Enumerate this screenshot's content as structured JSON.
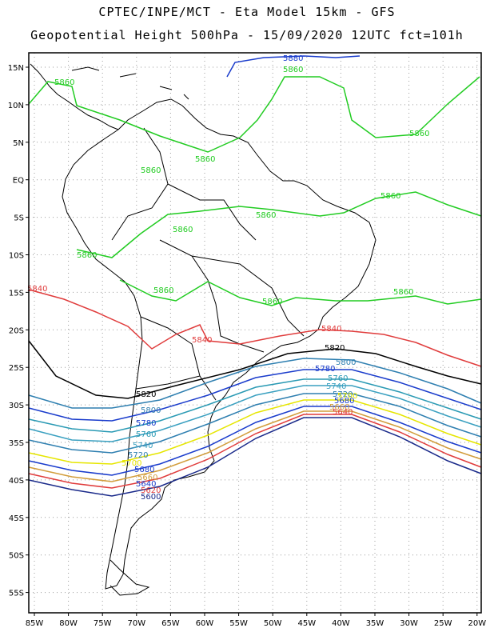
{
  "header": {
    "line1": "CPTEC/INPE/MCT  -  Eta Model 15km  -  GFS",
    "line2": "Geopotential Height 500hPa  -  15/09/2020 12UTC fct=101h"
  },
  "axes": {
    "lat_labels": [
      "15N",
      "10N",
      "5N",
      "EQ",
      "5S",
      "10S",
      "15S",
      "20S",
      "25S",
      "30S",
      "35S",
      "40S",
      "45S",
      "50S",
      "55S"
    ],
    "lon_labels": [
      "85W",
      "80W",
      "75W",
      "70W",
      "65W",
      "60W",
      "55W",
      "50W",
      "45W",
      "40W",
      "35W",
      "30W",
      "25W",
      "20W"
    ]
  },
  "colors": {
    "c5880": "#1a3ccc",
    "c5860": "#22cc22",
    "c5840": "#e03c3c",
    "c5820": "#000000",
    "c5800": "#2e7fb0",
    "c5780": "#1a3ccc",
    "c5760": "#2a9ab4",
    "c5740": "#3aa0c0",
    "c5720": "#2e7fb0",
    "c5700": "#e6e600",
    "c5680": "#1a3ccc",
    "c5660": "#d29d3c",
    "c5640": "#e03c3c",
    "c5620": "#1a2a8a"
  },
  "contour_labels": {
    "l5880": "5880",
    "l5860": "5860",
    "l5840": "5840",
    "l5820": "5820",
    "l5800": "5800",
    "l5780": "5780",
    "l5760": "5760",
    "l5740": "5740",
    "l5720": "5720",
    "l5700": "5700",
    "l5680": "5680",
    "l5660": "5660",
    "l5640": "5640",
    "l5620": "5620",
    "l5600": "5600"
  }
}
